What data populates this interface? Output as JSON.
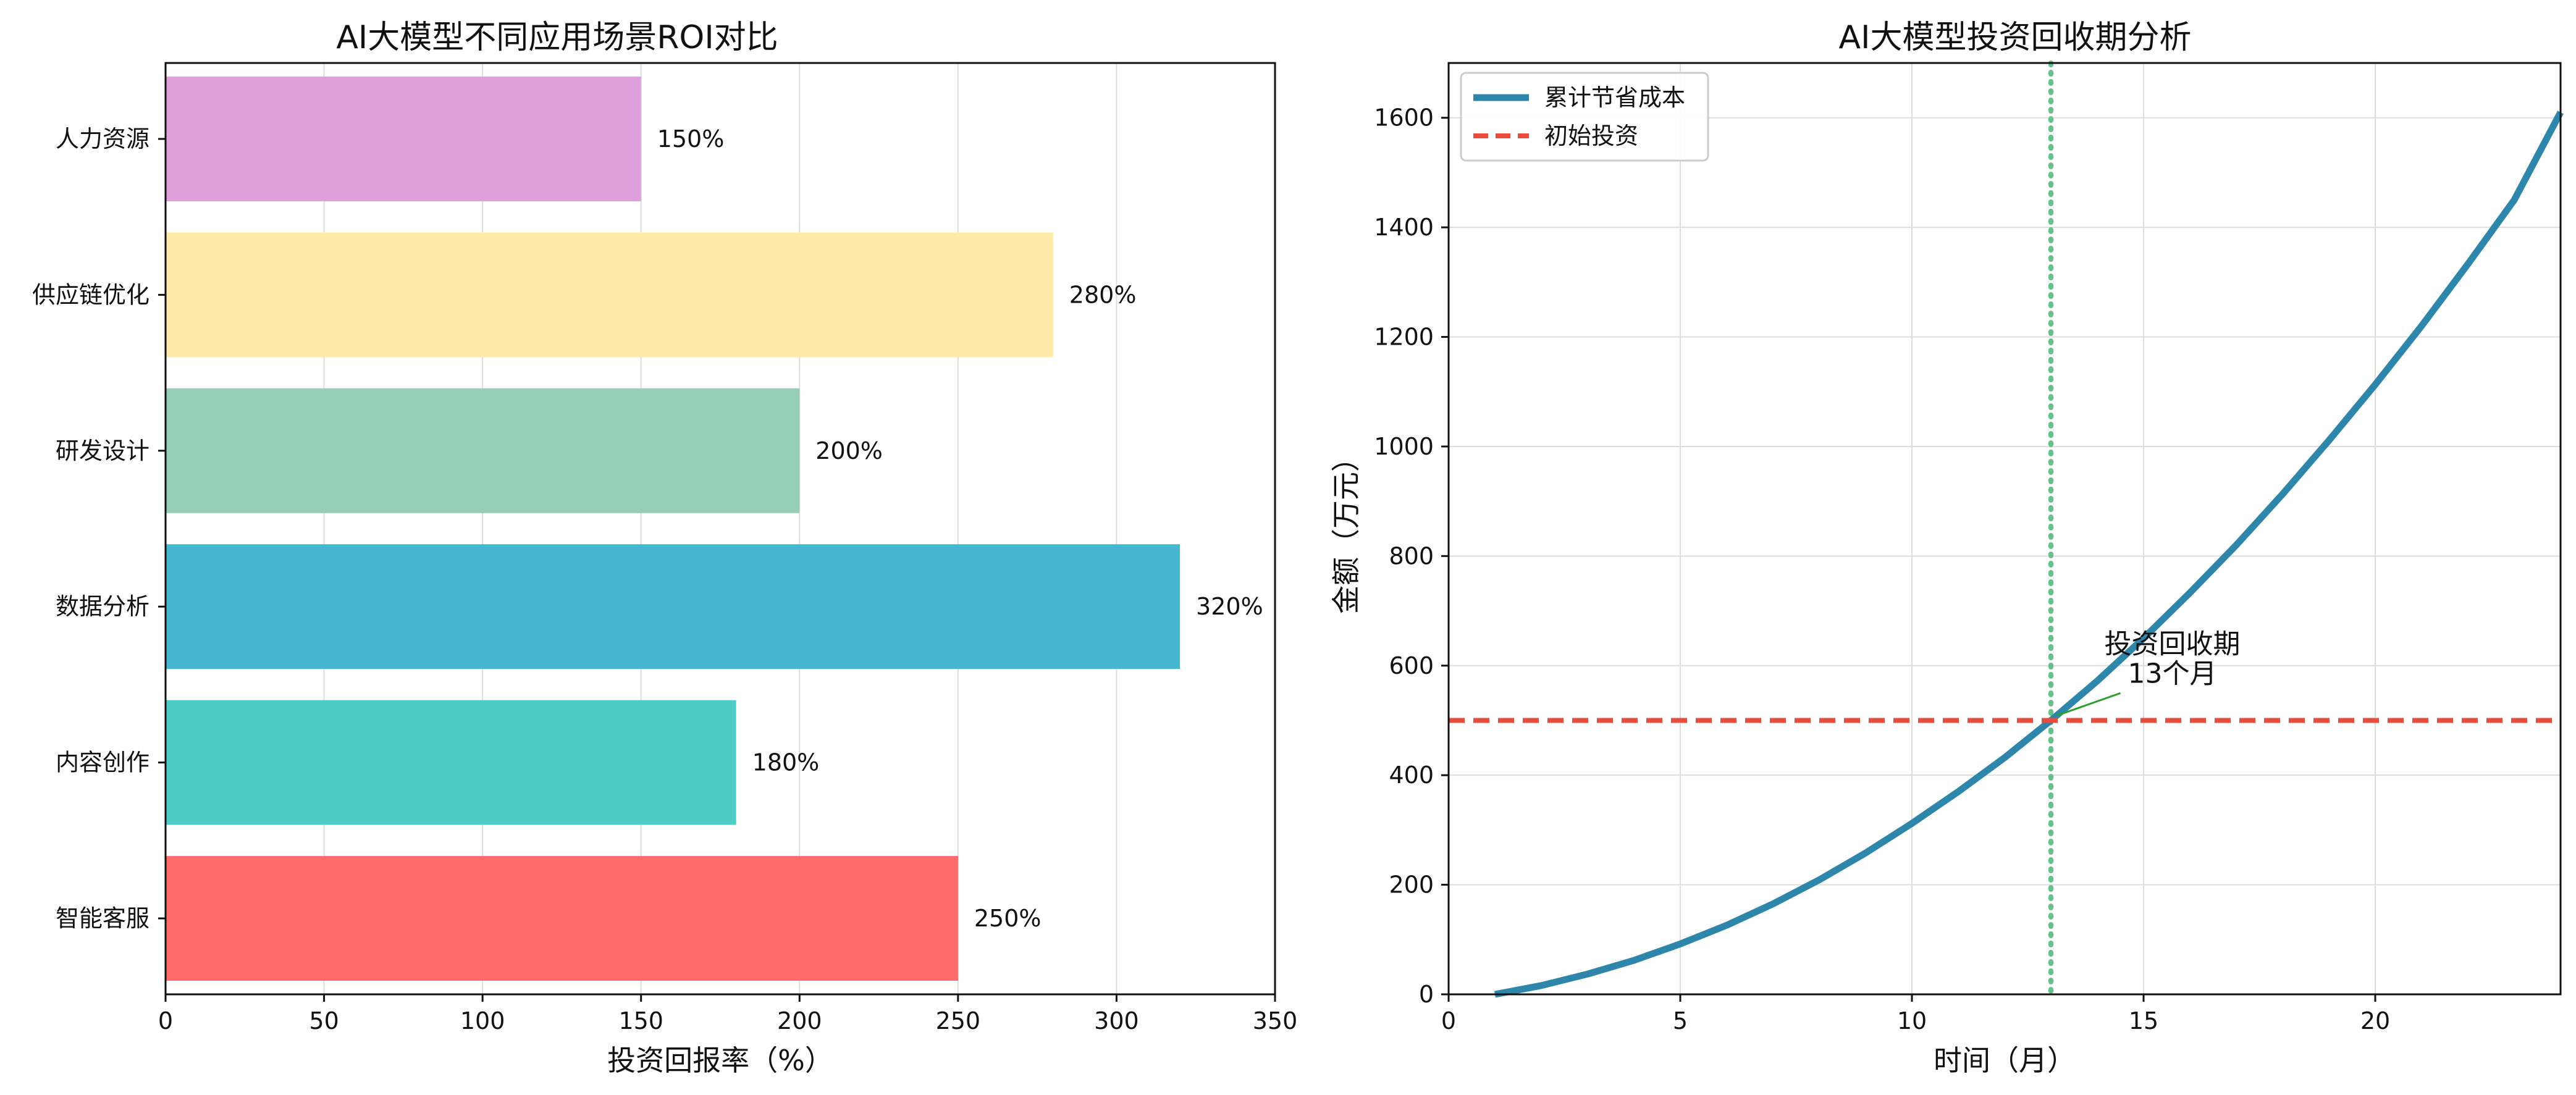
{
  "chart_data": [
    {
      "type": "bar",
      "orientation": "horizontal",
      "title": "AI大模型不同应用场景ROI对比",
      "xlabel": "投资回报率（%）",
      "ylabel": "",
      "categories": [
        "智能客服",
        "内容创作",
        "数据分析",
        "研发设计",
        "供应链优化",
        "人力资源"
      ],
      "values": [
        250,
        180,
        320,
        200,
        280,
        150
      ],
      "value_labels": [
        "250%",
        "180%",
        "320%",
        "200%",
        "280%",
        "150%"
      ],
      "colors": [
        "#ff6b6b",
        "#4ecdc4",
        "#45b7d1",
        "#96ceb4",
        "#ffeaa7",
        "#dda0dd"
      ],
      "xlim": [
        0,
        350
      ],
      "xticks": [
        0,
        50,
        100,
        150,
        200,
        250,
        300,
        350
      ],
      "grid": true
    },
    {
      "type": "line",
      "title": "AI大模型投资回收期分析",
      "xlabel": "时间（月）",
      "ylabel": "金额（万元）",
      "xlim": [
        0,
        24
      ],
      "ylim": [
        0,
        1700
      ],
      "xticks": [
        0,
        5,
        10,
        15,
        20
      ],
      "yticks": [
        0,
        200,
        400,
        600,
        800,
        1000,
        1200,
        1400,
        1600
      ],
      "grid": true,
      "legend_position": "top-left",
      "series": [
        {
          "name": "累计节省成本",
          "style": "solid",
          "color": "#2e86ab",
          "x": [
            1,
            2,
            3,
            4,
            5,
            6,
            7,
            8,
            9,
            10,
            11,
            12,
            13,
            14,
            15,
            16,
            17,
            18,
            19,
            20,
            21,
            22,
            23,
            24
          ],
          "y": [
            0,
            16,
            37,
            62,
            92,
            126,
            165,
            209,
            258,
            312,
            370,
            432,
            500,
            572,
            650,
            733,
            820,
            913,
            1011,
            1113,
            1220,
            1333,
            1450,
            1610
          ]
        },
        {
          "name": "初始投资",
          "style": "dashed",
          "color": "#e74c3c",
          "x": [
            0,
            24
          ],
          "y": [
            500,
            500
          ]
        }
      ],
      "reference_lines": [
        {
          "orientation": "vertical",
          "x": 13,
          "style": "dotted",
          "color": "#66c28a"
        }
      ],
      "annotation": {
        "line1": "投资回收期",
        "line2": "13个月",
        "point": [
          13,
          500
        ],
        "text_at": [
          14.5,
          640
        ],
        "arrow_color": "#2ca02c"
      }
    }
  ]
}
